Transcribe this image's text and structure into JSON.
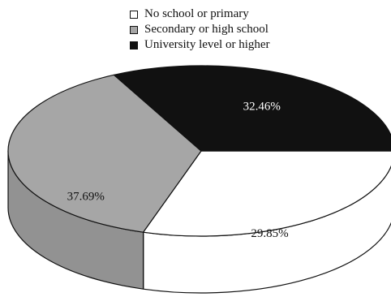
{
  "chart_data": {
    "type": "pie",
    "title": "",
    "slices": [
      {
        "label": "No school or primary",
        "value": 29.85,
        "value_label": "29.85%",
        "color": "#ffffff",
        "text_color": "#111111"
      },
      {
        "label": "Secondary or high school",
        "value": 37.69,
        "value_label": "37.69%",
        "color": "#a6a6a6",
        "text_color": "#111111"
      },
      {
        "label": "University level or higher",
        "value": 32.46,
        "value_label": "32.46%",
        "color": "#111111",
        "text_color": "#ffffff"
      }
    ],
    "legend_position": "top-center",
    "style": "3d"
  }
}
